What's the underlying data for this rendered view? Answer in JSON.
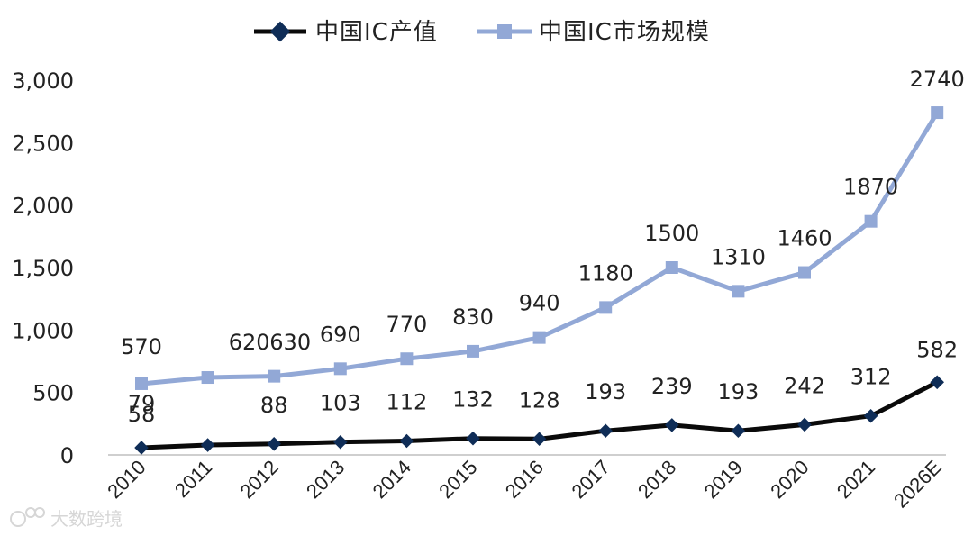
{
  "chart_data": {
    "type": "line",
    "categories": [
      "2010",
      "2011",
      "2012",
      "2013",
      "2014",
      "2015",
      "2016",
      "2017",
      "2018",
      "2019",
      "2020",
      "2021",
      "2026E"
    ],
    "series": [
      {
        "name": "中国IC产值",
        "values": [
          58,
          79,
          88,
          103,
          112,
          132,
          128,
          193,
          239,
          193,
          242,
          312,
          582
        ],
        "labels": [
          "58",
          "79",
          "88",
          "103",
          "112",
          "132",
          "128",
          "193",
          "239",
          "193",
          "242",
          "312",
          "582"
        ],
        "color": "#0a0a0a",
        "marker_color": "#0f2d57",
        "marker": "diamond"
      },
      {
        "name": "中国IC市场规模",
        "values": [
          570,
          620,
          630,
          690,
          770,
          830,
          940,
          1180,
          1500,
          1310,
          1460,
          1870,
          2740
        ],
        "labels": [
          "570",
          "620",
          "630",
          "690",
          "770",
          "830",
          "940",
          "1180",
          "1500",
          "1310",
          "1460",
          "1870",
          "2740"
        ],
        "color": "#92a8d6",
        "marker_color": "#92a8d6",
        "marker": "square"
      }
    ],
    "ylim": [
      0,
      3000
    ],
    "yticks": [
      0,
      500,
      1000,
      1500,
      2000,
      2500,
      3000
    ],
    "ytick_labels": [
      "0",
      "500",
      "1,000",
      "1,500",
      "2,000",
      "2,500",
      "3,000"
    ],
    "legend_position": "top",
    "grid": false,
    "title": "",
    "xlabel": "",
    "ylabel": ""
  },
  "watermark": {
    "text": "大数跨境",
    "icon": "watermark-logo-icon",
    "color": "#d6d6d6"
  }
}
